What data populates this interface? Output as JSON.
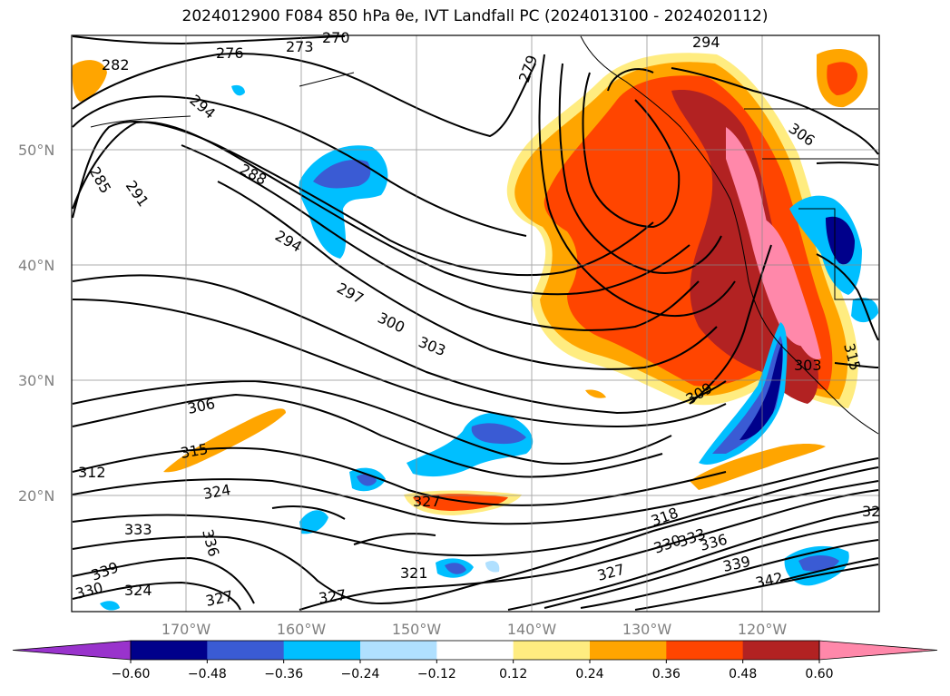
{
  "title": "2024012900 F084 850 hPa θe, IVT Landfall PC (2024013100 - 2024020112)",
  "lat_labels": [
    "50°N",
    "40°N",
    "30°N",
    "20°N"
  ],
  "lon_labels": [
    "170°W",
    "160°W",
    "150°W",
    "140°W",
    "130°W",
    "120°W"
  ],
  "contour_labels": [
    "282",
    "276",
    "273",
    "270",
    "279",
    "294",
    "285",
    "291",
    "288",
    "294",
    "297",
    "300",
    "303",
    "306",
    "306",
    "309",
    "312",
    "315",
    "315",
    "324",
    "327",
    "333",
    "336",
    "339",
    "330",
    "324",
    "327",
    "327",
    "321",
    "318",
    "330",
    "333",
    "336",
    "339",
    "342",
    "32",
    "306",
    "303"
  ],
  "colorbar": {
    "ticks": [
      "−0.60",
      "−0.48",
      "−0.36",
      "−0.24",
      "−0.12",
      "0.12",
      "0.24",
      "0.36",
      "0.48",
      "0.60"
    ],
    "colors": [
      "#9933cc",
      "#00008b",
      "#3a5bd4",
      "#00bfff",
      "#b0e0ff",
      "#ffffff",
      "#ffec80",
      "#ffa500",
      "#ff4500",
      "#b22222",
      "#ff88aa"
    ]
  }
}
